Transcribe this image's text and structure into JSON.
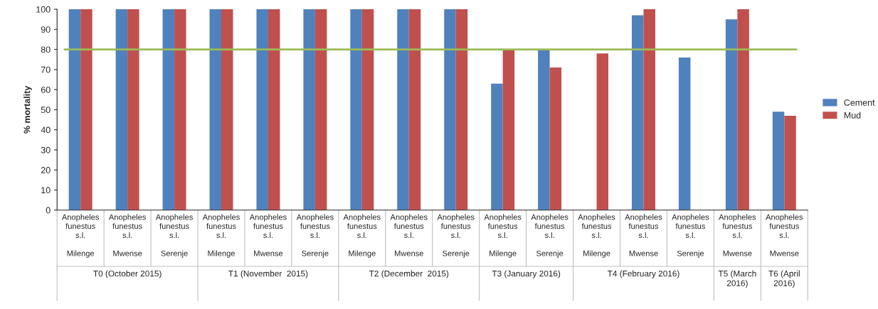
{
  "chart_data": {
    "type": "bar",
    "ylabel": "% mortality",
    "categories": [
      "Anopheles\nfunestus\ns.l.\n\nMilenge",
      "Anopheles\nfunestus\ns.l.\n\nMwense",
      "Anopheles\nfunestus\ns.l.\n\nSerenje",
      "Anopheles\nfunestus\ns.l.\n\nMilenge",
      "Anopheles\nfunestus\ns.l.\n\nMwense",
      "Anopheles\nfunestus\ns.l.\n\nSerenje",
      "Anopheles\nfunestus\ns.l.\n\nMilenge",
      "Anopheles\nfunestus\ns.l.\n\nMwense",
      "Anopheles\nfunestus\ns.l.\n\nSerenje",
      "Anopheles\nfunestus\ns.l.\n\nMilenge",
      "Anopheles\nfunestus\ns.l.\n\nSerenje",
      "Anopheles\nfunestus\ns.l.\n\nMilenge",
      "Anopheles\nfunestus\ns.l.\n\nMwense",
      "Anopheles\nfunestus\ns.l.\n\nSerenje",
      "Anopheles\nfunestus\ns.l.\n\nMwense",
      "Anopheles\nfunestus\ns.l.\n\nMwense"
    ],
    "series": [
      {
        "name": "Cement",
        "color": "#4f81bd",
        "values": [
          100,
          100,
          100,
          100,
          100,
          100,
          100,
          100,
          100,
          63,
          80,
          null,
          97,
          76,
          95,
          49
        ]
      },
      {
        "name": "Mud",
        "color": "#c0504d",
        "values": [
          100,
          100,
          100,
          100,
          100,
          100,
          100,
          100,
          100,
          80,
          71,
          78,
          100,
          null,
          100,
          47
        ]
      }
    ],
    "annotations": [
      "T0 (October 2015)",
      "T1 (November  2015)",
      "T2 (December  2015)",
      "T3 (January 2016)",
      "T4 (February 2016)",
      "T5 (March\n2016)",
      "T6 (April\n2016)"
    ],
    "ref_lines": [
      {
        "axis": "y",
        "value": 80,
        "color": "#9bbb59"
      }
    ],
    "ylim": [
      0,
      100
    ],
    "yticks": [
      0,
      10,
      20,
      30,
      40,
      50,
      60,
      70,
      80,
      90,
      100
    ],
    "grid": false,
    "legend": "right"
  }
}
